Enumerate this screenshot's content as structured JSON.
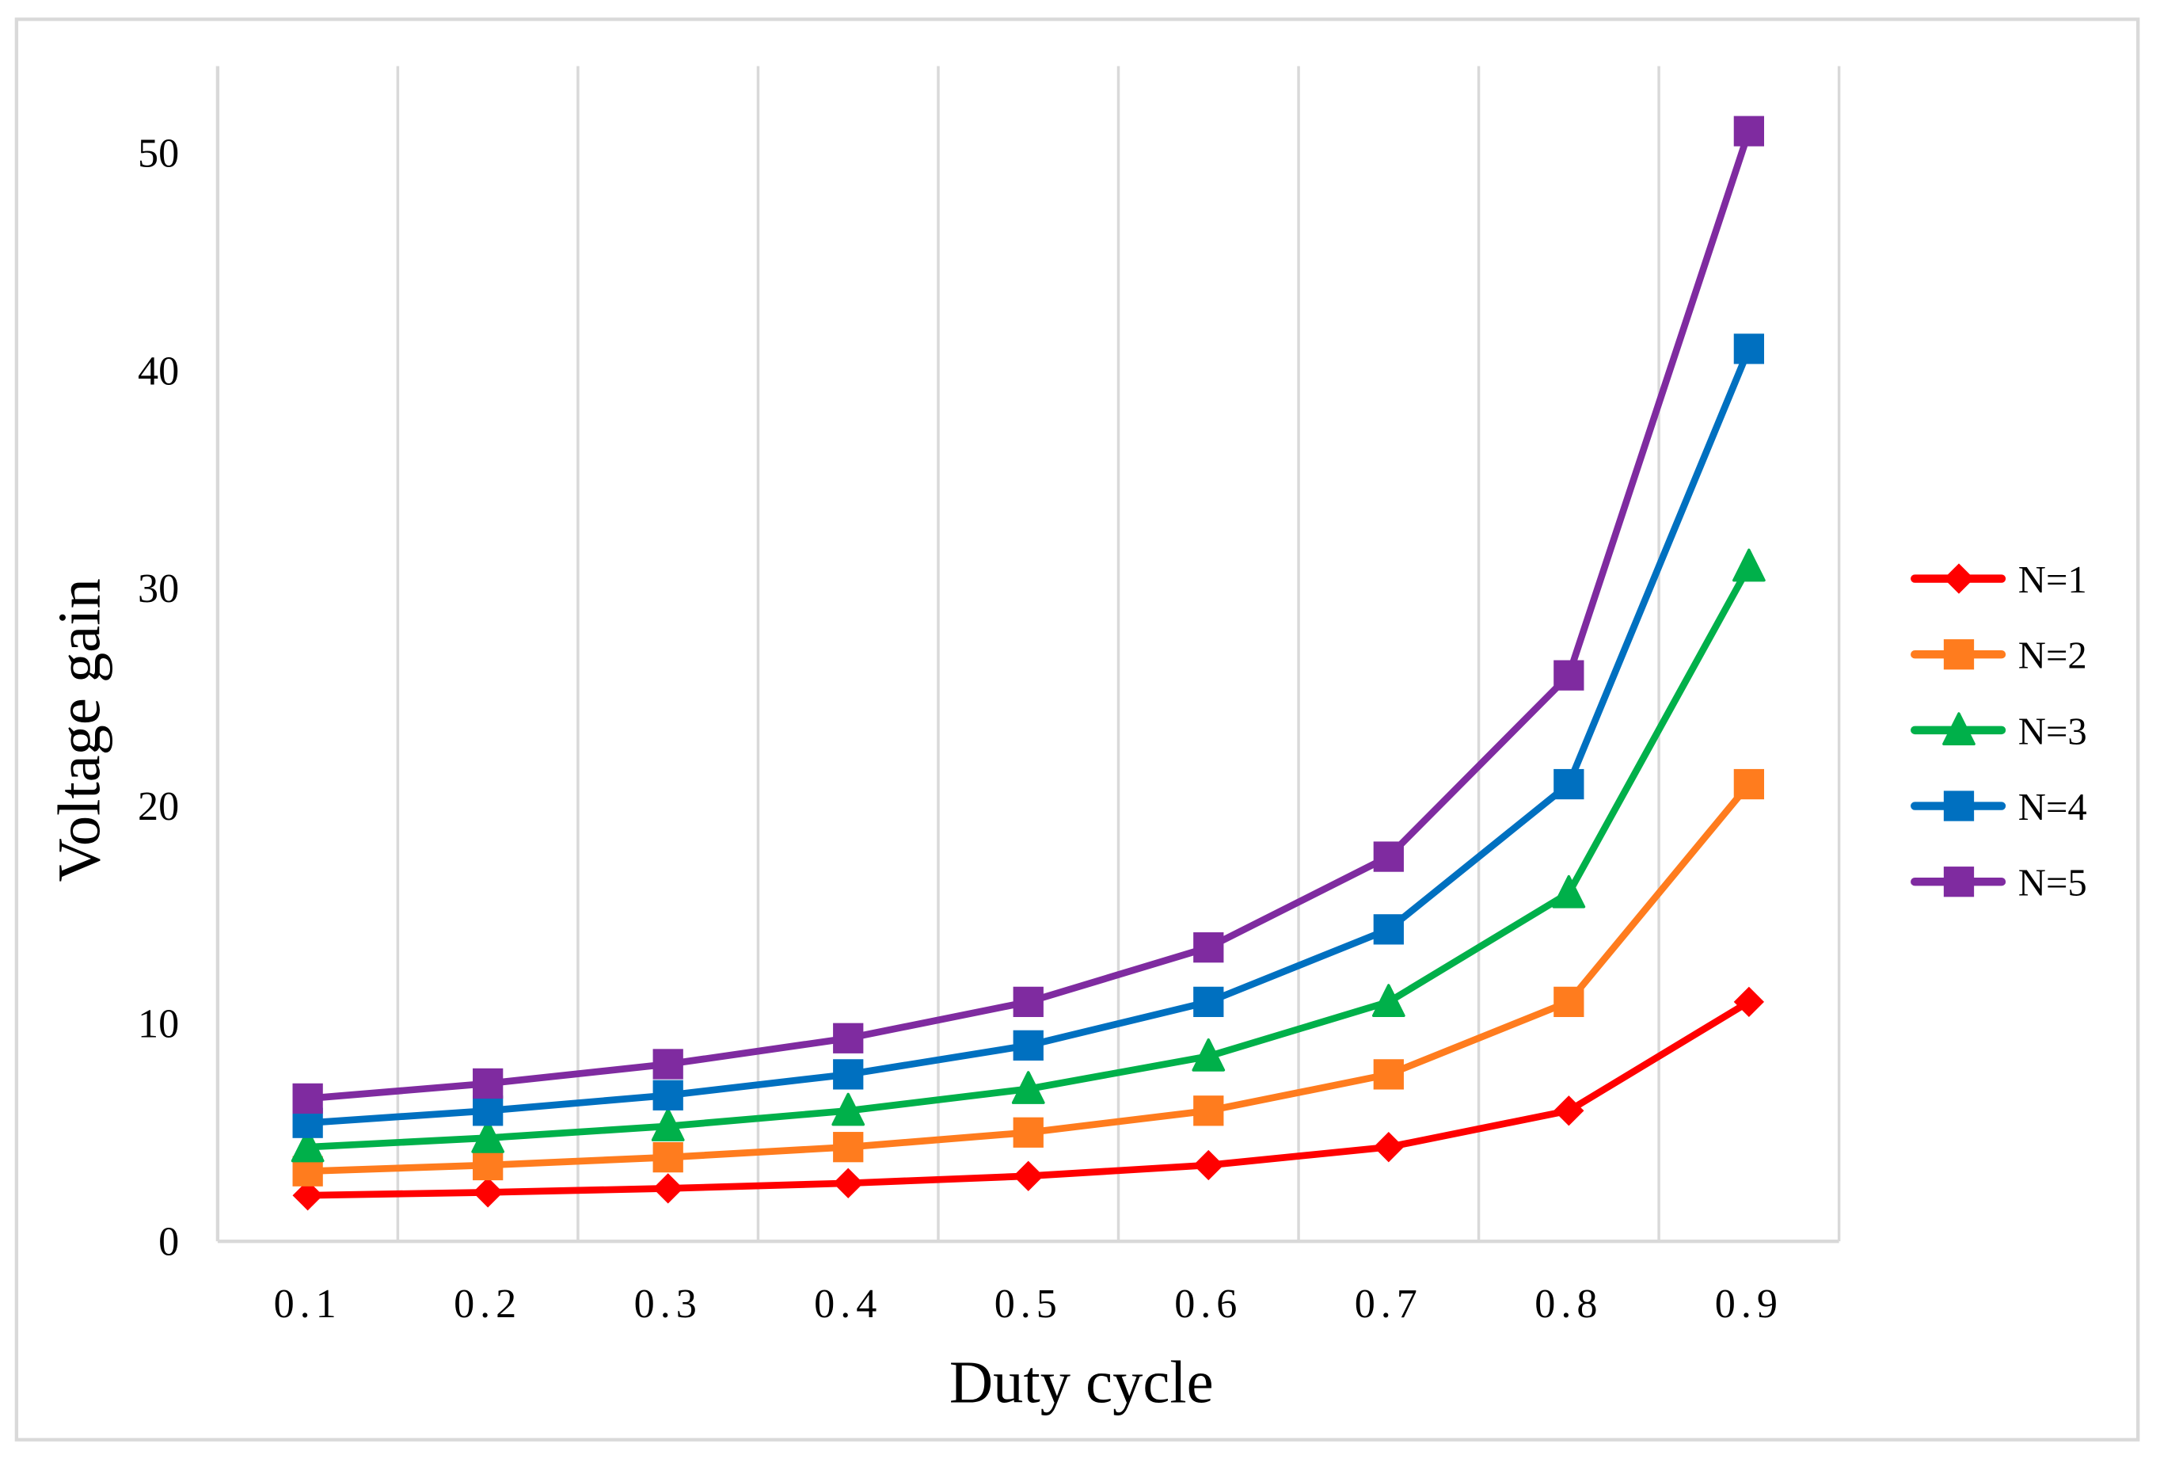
{
  "chart_data": {
    "type": "line",
    "title": "",
    "xlabel": "Duty cycle",
    "ylabel": "Voltage gain",
    "categories": [
      "0.1",
      "0.2",
      "0.3",
      "0.4",
      "0.5",
      "0.6",
      "0.7",
      "0.8",
      "0.9"
    ],
    "ylim": [
      0,
      54
    ],
    "yticks": [
      0,
      10,
      20,
      30,
      40,
      50
    ],
    "grid": "vertical",
    "legend_position": "right",
    "series": [
      {
        "name": "N=1",
        "color": "#ff0000",
        "marker": "diamond",
        "values": [
          2.11,
          2.25,
          2.43,
          2.67,
          3,
          3.5,
          4.33,
          6,
          11
        ]
      },
      {
        "name": "N=2",
        "color": "#ff7c1e",
        "marker": "square",
        "values": [
          3.22,
          3.5,
          3.86,
          4.33,
          5,
          6,
          7.67,
          11,
          21
        ]
      },
      {
        "name": "N=3",
        "color": "#00b04a",
        "marker": "triangle",
        "values": [
          4.33,
          4.75,
          5.29,
          6,
          7,
          8.5,
          11,
          16,
          31
        ]
      },
      {
        "name": "N=4",
        "color": "#0070c0",
        "marker": "square",
        "values": [
          5.44,
          6,
          6.71,
          7.67,
          9,
          11,
          14.33,
          21,
          41
        ]
      },
      {
        "name": "N=5",
        "color": "#7f2ba0",
        "marker": "square",
        "values": [
          6.56,
          7.25,
          8.14,
          9.33,
          11,
          13.5,
          17.67,
          26,
          51
        ]
      }
    ]
  }
}
